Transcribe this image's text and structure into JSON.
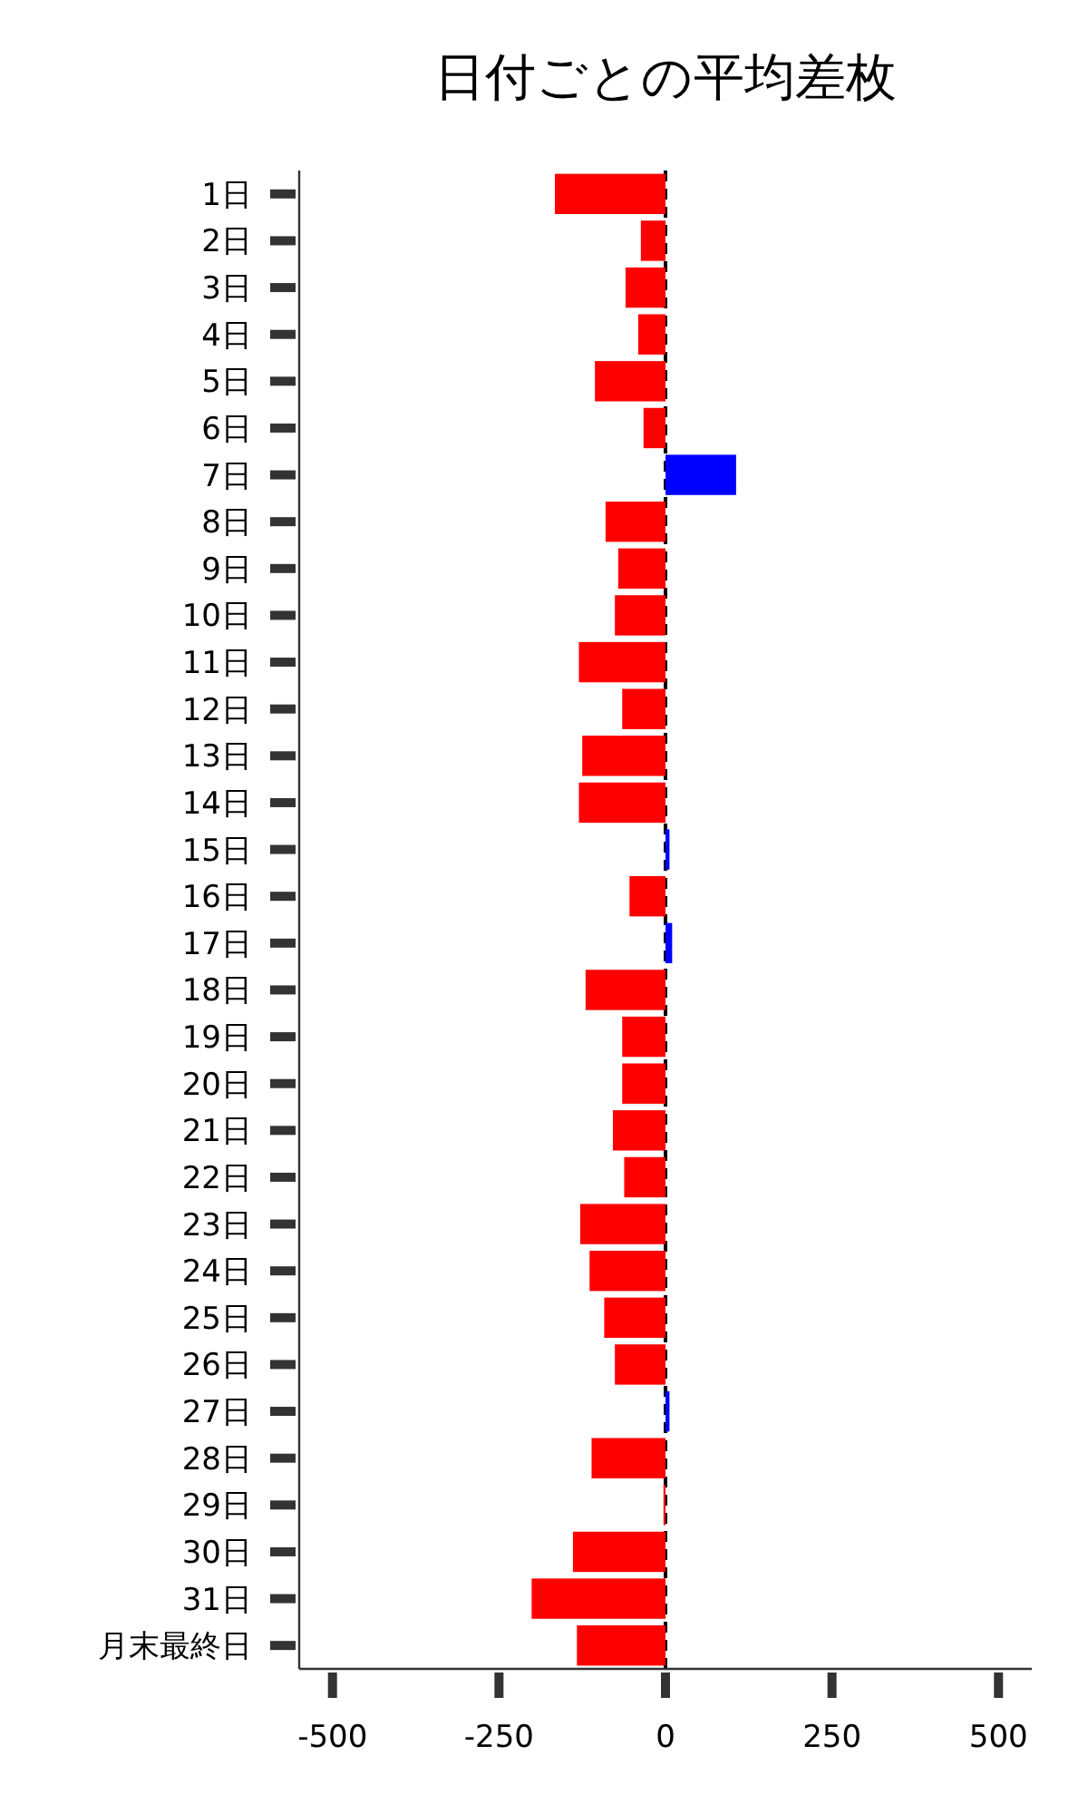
{
  "chart_data": {
    "type": "bar",
    "orientation": "horizontal",
    "title": "日付ごとの平均差枚",
    "categories": [
      "1日",
      "2日",
      "3日",
      "4日",
      "5日",
      "6日",
      "7日",
      "8日",
      "9日",
      "10日",
      "11日",
      "12日",
      "13日",
      "14日",
      "15日",
      "16日",
      "17日",
      "18日",
      "19日",
      "20日",
      "21日",
      "22日",
      "23日",
      "24日",
      "25日",
      "26日",
      "27日",
      "28日",
      "29日",
      "30日",
      "31日",
      "月末最終日"
    ],
    "values": [
      -166,
      -37,
      -60,
      -41,
      -106,
      -33,
      106,
      -90,
      -71,
      -76,
      -130,
      -65,
      -125,
      -130,
      6,
      -54,
      10,
      -120,
      -65,
      -65,
      -79,
      -62,
      -128,
      -114,
      -92,
      -76,
      6,
      -111,
      -3,
      -139,
      -201,
      -133
    ],
    "colors": [
      "#ff0000",
      "#ff0000",
      "#ff0000",
      "#ff0000",
      "#ff0000",
      "#ff0000",
      "#0000ff",
      "#ff0000",
      "#ff0000",
      "#ff0000",
      "#ff0000",
      "#ff0000",
      "#ff0000",
      "#ff0000",
      "#0000ff",
      "#ff0000",
      "#0000ff",
      "#ff0000",
      "#ff0000",
      "#ff0000",
      "#ff0000",
      "#ff0000",
      "#ff0000",
      "#ff0000",
      "#ff0000",
      "#ff0000",
      "#0000ff",
      "#ff0000",
      "#ff0000",
      "#ff0000",
      "#ff0000",
      "#ff0000"
    ],
    "xlim": [
      -550,
      550
    ],
    "xticks": [
      -500,
      -250,
      0,
      250,
      500
    ],
    "ref_lines": [
      {
        "axis": "x",
        "value": 0,
        "color": "#000000",
        "line_style": "dashed"
      }
    ],
    "grid": false
  }
}
